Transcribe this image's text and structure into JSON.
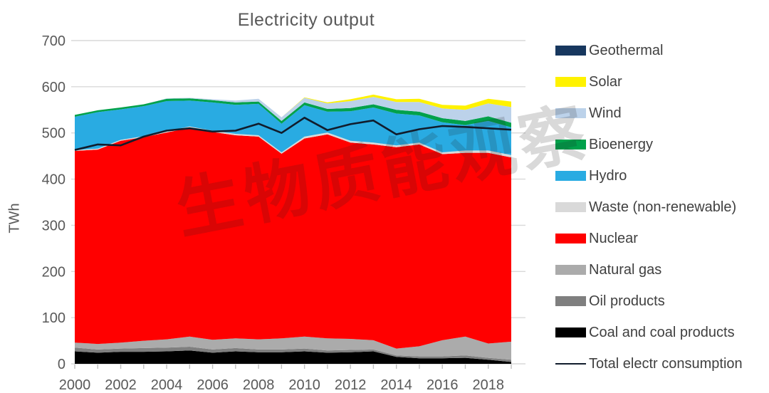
{
  "title": "Electricity output",
  "watermark": {
    "text": "生物质能观察"
  },
  "legend": {
    "items": [
      {
        "label": "Geothermal",
        "color": "#17375E",
        "swatch": "box"
      },
      {
        "label": "Solar",
        "color": "#FFF200",
        "swatch": "box"
      },
      {
        "label": "Wind",
        "color": "#BCD2EA",
        "swatch": "box"
      },
      {
        "label": "Bioenergy",
        "color": "#00A14B",
        "swatch": "box"
      },
      {
        "label": "Hydro",
        "color": "#29ABE2",
        "swatch": "box"
      },
      {
        "label": "Waste (non-renewable)",
        "color": "#D9D9D9",
        "swatch": "box"
      },
      {
        "label": "Nuclear",
        "color": "#FF0000",
        "swatch": "box"
      },
      {
        "label": "Natural gas",
        "color": "#ABABAB",
        "swatch": "box"
      },
      {
        "label": "Oil products",
        "color": "#7F7F7F",
        "swatch": "box"
      },
      {
        "label": "Coal and coal products",
        "color": "#000000",
        "swatch": "box"
      },
      {
        "label": "Total electr consumption",
        "color": "#111C2C",
        "swatch": "line"
      }
    ]
  },
  "chart_data": {
    "type": "area",
    "stacked": true,
    "title": "Electricity output",
    "xlabel": "",
    "ylabel": "TWh",
    "ylim": [
      0,
      700
    ],
    "ytick_interval": 100,
    "y_ticks": [
      700,
      600,
      500,
      400,
      300,
      200,
      100,
      0
    ],
    "grid": "horizontal",
    "legend_position": "right",
    "x": [
      2000,
      2001,
      2002,
      2003,
      2004,
      2005,
      2006,
      2007,
      2008,
      2009,
      2010,
      2011,
      2012,
      2013,
      2014,
      2015,
      2016,
      2017,
      2018,
      2019
    ],
    "xtick_labels": [
      "2000",
      "2002",
      "2004",
      "2006",
      "2008",
      "2010",
      "2012",
      "2014",
      "2016",
      "2018"
    ],
    "series": [
      {
        "name": "Coal and coal products",
        "color": "#000000",
        "values": [
          27,
          24,
          26,
          26,
          27,
          29,
          24,
          27,
          25,
          25,
          27,
          24,
          25,
          27,
          15,
          12,
          12,
          13,
          9,
          4
        ]
      },
      {
        "name": "Oil products",
        "color": "#7F7F7F",
        "values": [
          8,
          7,
          7,
          8,
          8,
          8,
          7,
          7,
          6,
          6,
          6,
          5,
          5,
          4,
          3,
          4,
          4,
          5,
          4,
          5
        ]
      },
      {
        "name": "Natural gas",
        "color": "#ABABAB",
        "values": [
          11,
          12,
          13,
          16,
          18,
          22,
          21,
          21,
          22,
          24,
          26,
          26,
          24,
          20,
          15,
          22,
          35,
          41,
          31,
          39
        ]
      },
      {
        "name": "Nuclear",
        "color": "#FF0000",
        "values": [
          415,
          421,
          437,
          441,
          448,
          452,
          450,
          440,
          439,
          400,
          429,
          442,
          425,
          424,
          436,
          437,
          403,
          398,
          413,
          399
        ]
      },
      {
        "name": "Waste (non-renewable)",
        "color": "#D9D9D9",
        "values": [
          2,
          2,
          2,
          2,
          3,
          3,
          3,
          3,
          3,
          3,
          4,
          4,
          4,
          4,
          4,
          4,
          4,
          5,
          5,
          5
        ]
      },
      {
        "name": "Hydro",
        "color": "#29ABE2",
        "values": [
          72,
          79,
          66,
          65,
          65,
          56,
          61,
          63,
          68,
          62,
          68,
          45,
          64,
          76,
          69,
          59,
          65,
          55,
          64,
          60
        ]
      },
      {
        "name": "Bioenergy",
        "color": "#00A14B",
        "values": [
          4,
          4,
          4,
          4,
          5,
          5,
          5,
          5,
          5,
          6,
          6,
          6,
          7,
          7,
          8,
          8,
          9,
          9,
          10,
          10
        ]
      },
      {
        "name": "Wind",
        "color": "#BCD2EA",
        "values": [
          0,
          0,
          0,
          0,
          1,
          1,
          2,
          4,
          6,
          8,
          10,
          12,
          15,
          16,
          17,
          21,
          21,
          24,
          28,
          34
        ]
      },
      {
        "name": "Solar",
        "color": "#FFF200",
        "values": [
          0,
          0,
          0,
          0,
          0,
          0,
          0,
          0,
          0,
          0,
          1,
          2,
          4,
          5,
          6,
          7,
          8,
          9,
          10,
          12
        ]
      },
      {
        "name": "Geothermal",
        "color": "#17375E",
        "values": [
          0,
          0,
          0,
          0,
          0,
          0,
          0,
          0,
          0,
          0,
          0,
          0,
          0,
          0,
          0,
          0,
          0,
          0,
          0,
          0
        ]
      }
    ],
    "line_series": {
      "name": "Total electr consumption",
      "color": "#111C2C",
      "values": [
        463,
        475,
        473,
        492,
        505,
        510,
        503,
        505,
        520,
        500,
        533,
        506,
        519,
        527,
        497,
        508,
        515,
        513,
        510,
        507
      ]
    }
  }
}
